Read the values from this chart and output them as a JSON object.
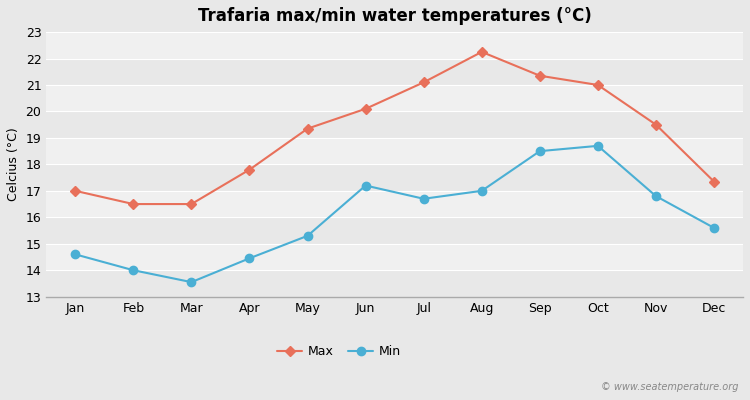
{
  "months": [
    "Jan",
    "Feb",
    "Mar",
    "Apr",
    "May",
    "Jun",
    "Jul",
    "Aug",
    "Sep",
    "Oct",
    "Nov",
    "Dec"
  ],
  "max_temps": [
    17.0,
    16.5,
    16.5,
    17.8,
    19.35,
    20.1,
    21.1,
    22.25,
    21.35,
    21.0,
    19.5,
    17.35
  ],
  "min_temps": [
    14.6,
    14.0,
    13.55,
    14.45,
    15.3,
    17.2,
    16.7,
    17.0,
    18.5,
    18.7,
    16.8,
    15.6
  ],
  "max_color": "#e8705a",
  "min_color": "#4aafd4",
  "title": "Trafaria max/min water temperatures (°C)",
  "ylabel": "Celcius (°C)",
  "ylim": [
    13,
    23
  ],
  "yticks": [
    13,
    14,
    15,
    16,
    17,
    18,
    19,
    20,
    21,
    22,
    23
  ],
  "band_colors": [
    "#e8e8e8",
    "#f0f0f0"
  ],
  "outer_bg": "#e8e8e8",
  "grid_color": "#ffffff",
  "watermark": "© www.seatemperature.org",
  "marker_size_max": 5,
  "marker_size_min": 6,
  "line_width": 1.5,
  "title_fontsize": 12,
  "axis_fontsize": 9,
  "legend_fontsize": 9
}
